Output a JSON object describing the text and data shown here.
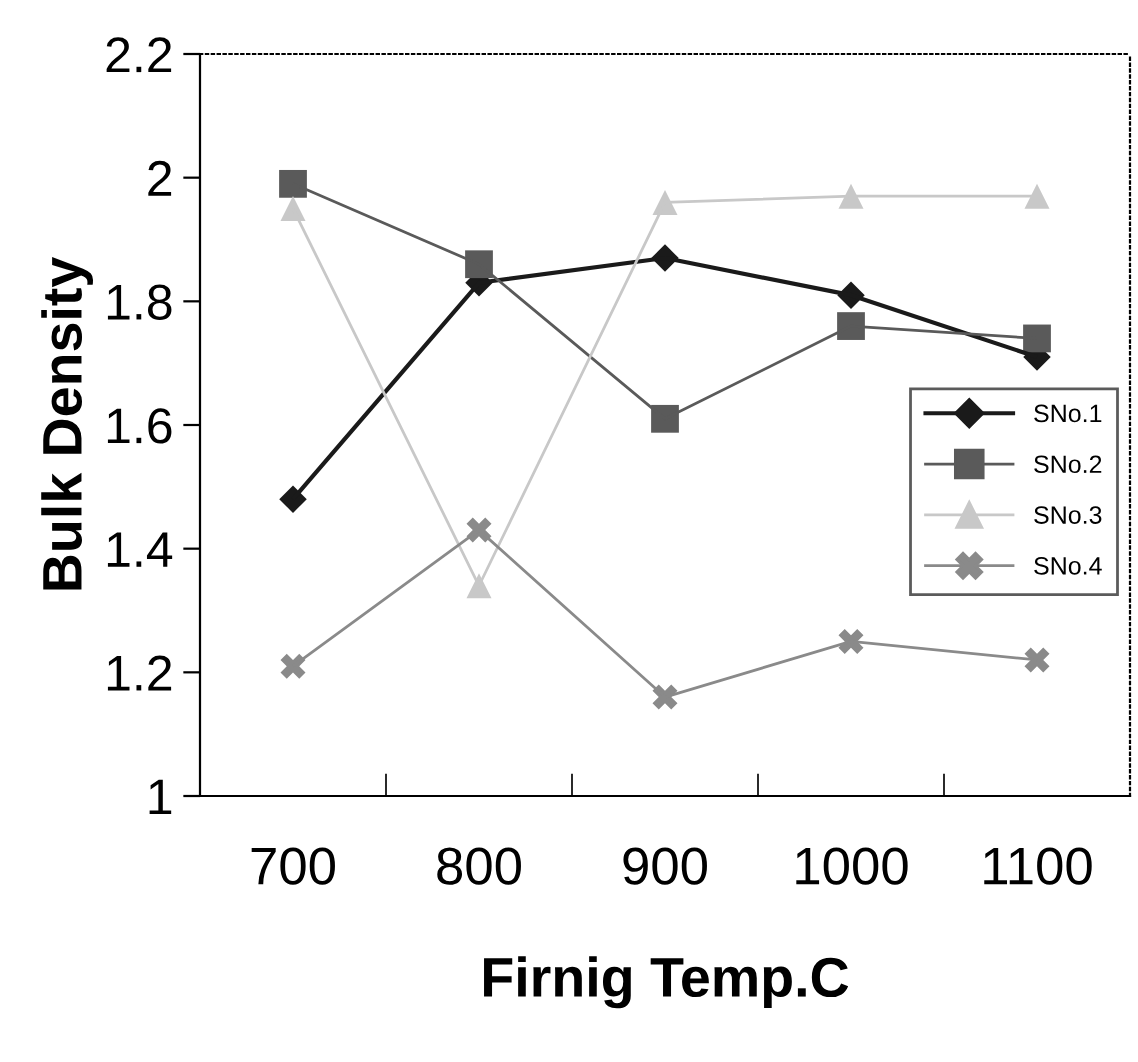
{
  "chart_data": {
    "type": "line",
    "xlabel": "Firnig Temp.C",
    "ylabel": "Bulk Density",
    "categories": [
      "700",
      "800",
      "900",
      "1000",
      "1100"
    ],
    "series": [
      {
        "name": "SNo.1",
        "color": "#1a1a1a",
        "marker": "diamond",
        "values": [
          1.48,
          1.83,
          1.87,
          1.81,
          1.71
        ]
      },
      {
        "name": "SNo.2",
        "color": "#5a5a5a",
        "marker": "square",
        "values": [
          1.99,
          1.86,
          1.61,
          1.76,
          1.74
        ]
      },
      {
        "name": "SNo.3",
        "color": "#c8c8c8",
        "marker": "triangle",
        "values": [
          1.95,
          1.34,
          1.96,
          1.97,
          1.97
        ]
      },
      {
        "name": "SNo.4",
        "color": "#8a8a8a",
        "marker": "cross",
        "values": [
          1.21,
          1.43,
          1.16,
          1.25,
          1.22
        ]
      }
    ],
    "ylim": [
      1,
      2.2
    ],
    "yticks": [
      1,
      1.2,
      1.4,
      1.6,
      1.8,
      2,
      2.2
    ],
    "grid": false,
    "legend": "center right"
  }
}
